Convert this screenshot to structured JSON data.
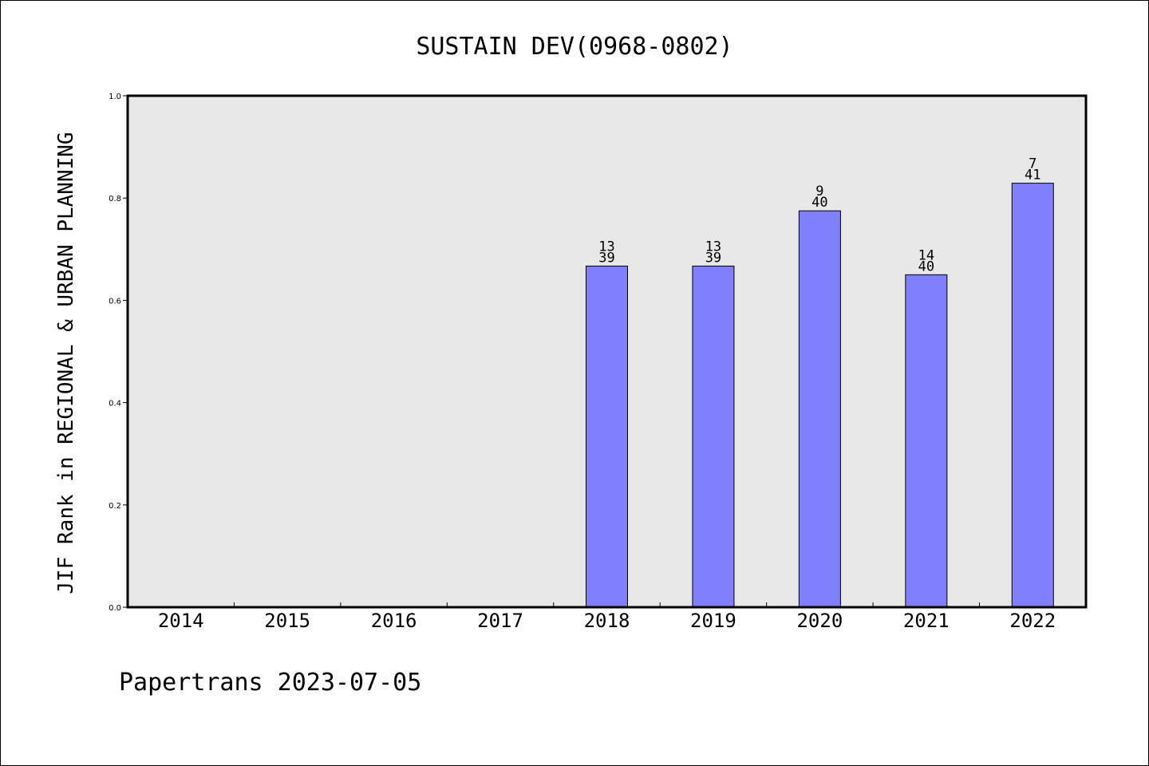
{
  "chart_data": {
    "type": "bar",
    "title": "SUSTAIN DEV(0968-0802)",
    "xlabel": "",
    "ylabel": "JIF Rank in REGIONAL & URBAN PLANNING",
    "categories": [
      "2014",
      "2015",
      "2016",
      "2017",
      "2018",
      "2019",
      "2020",
      "2021",
      "2022"
    ],
    "values": [
      null,
      null,
      null,
      null,
      0.667,
      0.667,
      0.775,
      0.65,
      0.829
    ],
    "rank": [
      null,
      null,
      null,
      null,
      "13",
      "13",
      "9",
      "14",
      "7"
    ],
    "total": [
      null,
      null,
      null,
      null,
      "39",
      "39",
      "40",
      "40",
      "41"
    ],
    "ylim": [
      0,
      1
    ],
    "yticks": [
      "0.0",
      "0.2",
      "0.4",
      "0.6",
      "0.8",
      "1.0"
    ],
    "ytick_values": [
      0,
      0.2,
      0.4,
      0.6,
      0.8,
      1.0
    ],
    "grid": false,
    "plot_background": "#e8e8e8",
    "bar_color": "#8080ff"
  },
  "footer": "Papertrans 2023-07-05"
}
